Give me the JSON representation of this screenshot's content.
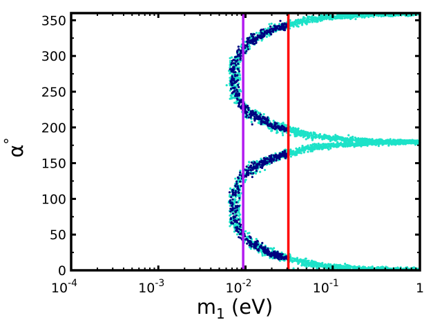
{
  "chart_data": {
    "type": "scatter",
    "title": "",
    "xlabel": "m1 (eV)",
    "xlabel_main": "m",
    "xlabel_sub": "1",
    "xlabel_unit": " (eV)",
    "ylabel": "α°",
    "ylabel_main": "α",
    "ylabel_sup": "°",
    "x_scale": "log",
    "xlim": [
      0.0001,
      1
    ],
    "ylim": [
      0,
      360
    ],
    "x_ticks": [
      {
        "value": 0.0001,
        "base": "10",
        "exp": "-4"
      },
      {
        "value": 0.001,
        "base": "10",
        "exp": "-3"
      },
      {
        "value": 0.01,
        "base": "10",
        "exp": "-2"
      },
      {
        "value": 0.1,
        "base": "10",
        "exp": "-1"
      },
      {
        "value": 1,
        "base": "1",
        "exp": ""
      }
    ],
    "y_ticks": [
      {
        "value": 0,
        "label": "0"
      },
      {
        "value": 50,
        "label": "50"
      },
      {
        "value": 100,
        "label": "100"
      },
      {
        "value": 150,
        "label": "150"
      },
      {
        "value": 200,
        "label": "200"
      },
      {
        "value": 250,
        "label": "250"
      },
      {
        "value": 300,
        "label": "300"
      },
      {
        "value": 350,
        "label": "350"
      }
    ],
    "vertical_lines": [
      {
        "name": "purple-line",
        "x": 0.0094,
        "color": "#b21cf0"
      },
      {
        "name": "red-line",
        "x": 0.031,
        "color": "#ff0000"
      }
    ],
    "series": [
      {
        "name": "cyan-points",
        "color": "#1de2c8",
        "branches": [
          {
            "upper": [
              [
                0.0068,
                270
              ],
              [
                0.008,
                300
              ],
              [
                0.011,
                320
              ],
              [
                0.02,
                337
              ],
              [
                0.05,
                350
              ],
              [
                0.1,
                355
              ],
              [
                0.3,
                358
              ],
              [
                1,
                359
              ]
            ],
            "lower": [
              [
                0.0068,
                270
              ],
              [
                0.008,
                240
              ],
              [
                0.011,
                220
              ],
              [
                0.02,
                203
              ],
              [
                0.05,
                190
              ],
              [
                0.1,
                185
              ],
              [
                0.3,
                181
              ],
              [
                1,
                180
              ]
            ]
          },
          {
            "upper": [
              [
                0.0068,
                90
              ],
              [
                0.008,
                120
              ],
              [
                0.011,
                140
              ],
              [
                0.02,
                157
              ],
              [
                0.05,
                170
              ],
              [
                0.1,
                175
              ],
              [
                0.3,
                178
              ],
              [
                1,
                179
              ]
            ],
            "lower": [
              [
                0.0068,
                90
              ],
              [
                0.008,
                60
              ],
              [
                0.011,
                40
              ],
              [
                0.02,
                23
              ],
              [
                0.05,
                10
              ],
              [
                0.1,
                5
              ],
              [
                0.3,
                2
              ],
              [
                1,
                1
              ]
            ]
          }
        ]
      },
      {
        "name": "navy-points",
        "color": "#000080",
        "x_range": [
          0.0068,
          0.031
        ],
        "branches_from": "cyan-points"
      }
    ]
  }
}
